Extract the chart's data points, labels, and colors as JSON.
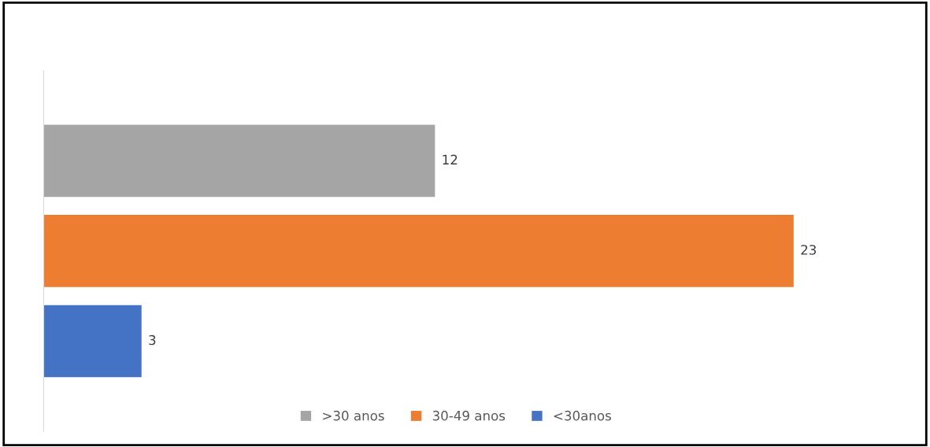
{
  "chart_data": {
    "type": "bar",
    "orientation": "horizontal",
    "categories": [
      null,
      null,
      null
    ],
    "series": [
      {
        "name": ">30 anos",
        "color": "#a5a5a5",
        "values": [
          12,
          null,
          null
        ]
      },
      {
        "name": "30-49 anos",
        "color": "#ed7d31",
        "values": [
          null,
          23,
          null
        ]
      },
      {
        "name": "<30anos",
        "color": "#4472c4",
        "values": [
          null,
          null,
          3
        ]
      }
    ],
    "stacked": true,
    "data_labels": true,
    "legend": "bottom",
    "grid": false
  }
}
